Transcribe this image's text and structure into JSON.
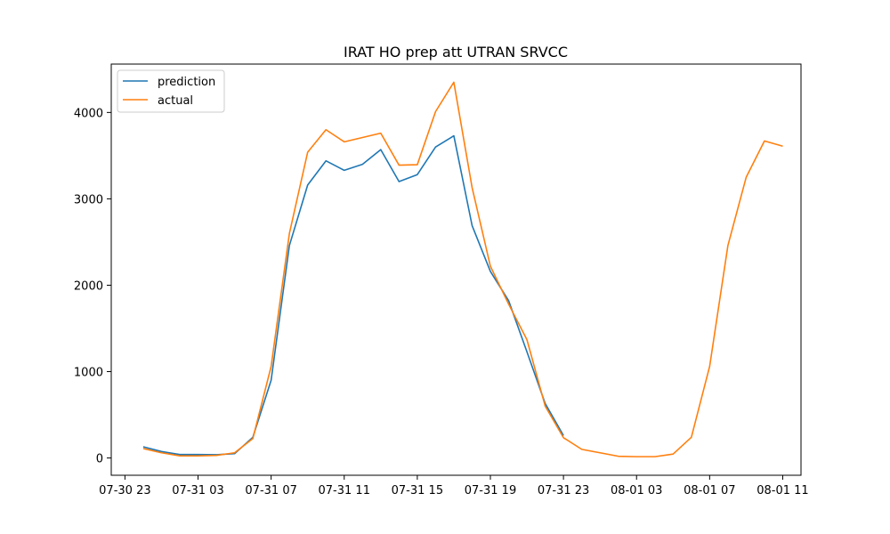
{
  "chart_data": {
    "type": "line",
    "title": "IRAT HO prep att UTRAN SRVCC",
    "xlabel": "",
    "ylabel": "",
    "x_unit": "hour",
    "xlim": [
      "07-30 22:15",
      "08-01 12:00"
    ],
    "ylim": [
      -200,
      4560
    ],
    "x_ticks": [
      {
        "x": "07-30 23",
        "label": "07-30 23"
      },
      {
        "x": "07-31 03",
        "label": "07-31 03"
      },
      {
        "x": "07-31 07",
        "label": "07-31 07"
      },
      {
        "x": "07-31 11",
        "label": "07-31 11"
      },
      {
        "x": "07-31 15",
        "label": "07-31 15"
      },
      {
        "x": "07-31 19",
        "label": "07-31 19"
      },
      {
        "x": "07-31 23",
        "label": "07-31 23"
      },
      {
        "x": "08-01 03",
        "label": "08-01 03"
      },
      {
        "x": "08-01 07",
        "label": "08-01 07"
      },
      {
        "x": "08-01 11",
        "label": "08-01 11"
      }
    ],
    "y_ticks": [
      0,
      1000,
      2000,
      3000,
      4000
    ],
    "grid": false,
    "legend_position": "top-left",
    "series": [
      {
        "name": "prediction",
        "color": "#1f77b4",
        "x": [
          "07-31 00",
          "07-31 01",
          "07-31 02",
          "07-31 03",
          "07-31 04",
          "07-31 05",
          "07-31 06",
          "07-31 07",
          "07-31 08",
          "07-31 09",
          "07-31 10",
          "07-31 11",
          "07-31 12",
          "07-31 13",
          "07-31 14",
          "07-31 15",
          "07-31 16",
          "07-31 17",
          "07-31 18",
          "07-31 19",
          "07-31 20",
          "07-31 21",
          "07-31 22",
          "07-31 23"
        ],
        "values": [
          130,
          75,
          40,
          40,
          38,
          50,
          240,
          900,
          2460,
          3160,
          3440,
          3330,
          3400,
          3570,
          3200,
          3280,
          3600,
          3730,
          2690,
          2160,
          1820,
          1230,
          630,
          260
        ]
      },
      {
        "name": "actual",
        "color": "#ff7f0e",
        "x": [
          "07-31 00",
          "07-31 01",
          "07-31 02",
          "07-31 03",
          "07-31 04",
          "07-31 05",
          "07-31 06",
          "07-31 07",
          "07-31 08",
          "07-31 09",
          "07-31 10",
          "07-31 11",
          "07-31 12",
          "07-31 13",
          "07-31 14",
          "07-31 15",
          "07-31 16",
          "07-31 17",
          "07-31 18",
          "07-31 19",
          "07-31 20",
          "07-31 21",
          "07-31 22",
          "07-31 23",
          "08-01 00",
          "08-01 01",
          "08-01 02",
          "08-01 03",
          "08-01 04",
          "08-01 05",
          "08-01 06",
          "08-01 07",
          "08-01 08",
          "08-01 09",
          "08-01 10",
          "08-01 11"
        ],
        "values": [
          110,
          60,
          25,
          25,
          30,
          60,
          225,
          1060,
          2600,
          3540,
          3800,
          3660,
          3710,
          3760,
          3390,
          3395,
          4010,
          4350,
          3130,
          2220,
          1780,
          1370,
          600,
          235,
          100,
          60,
          20,
          15,
          15,
          45,
          240,
          1060,
          2460,
          3250,
          3670,
          3610
        ]
      }
    ]
  }
}
